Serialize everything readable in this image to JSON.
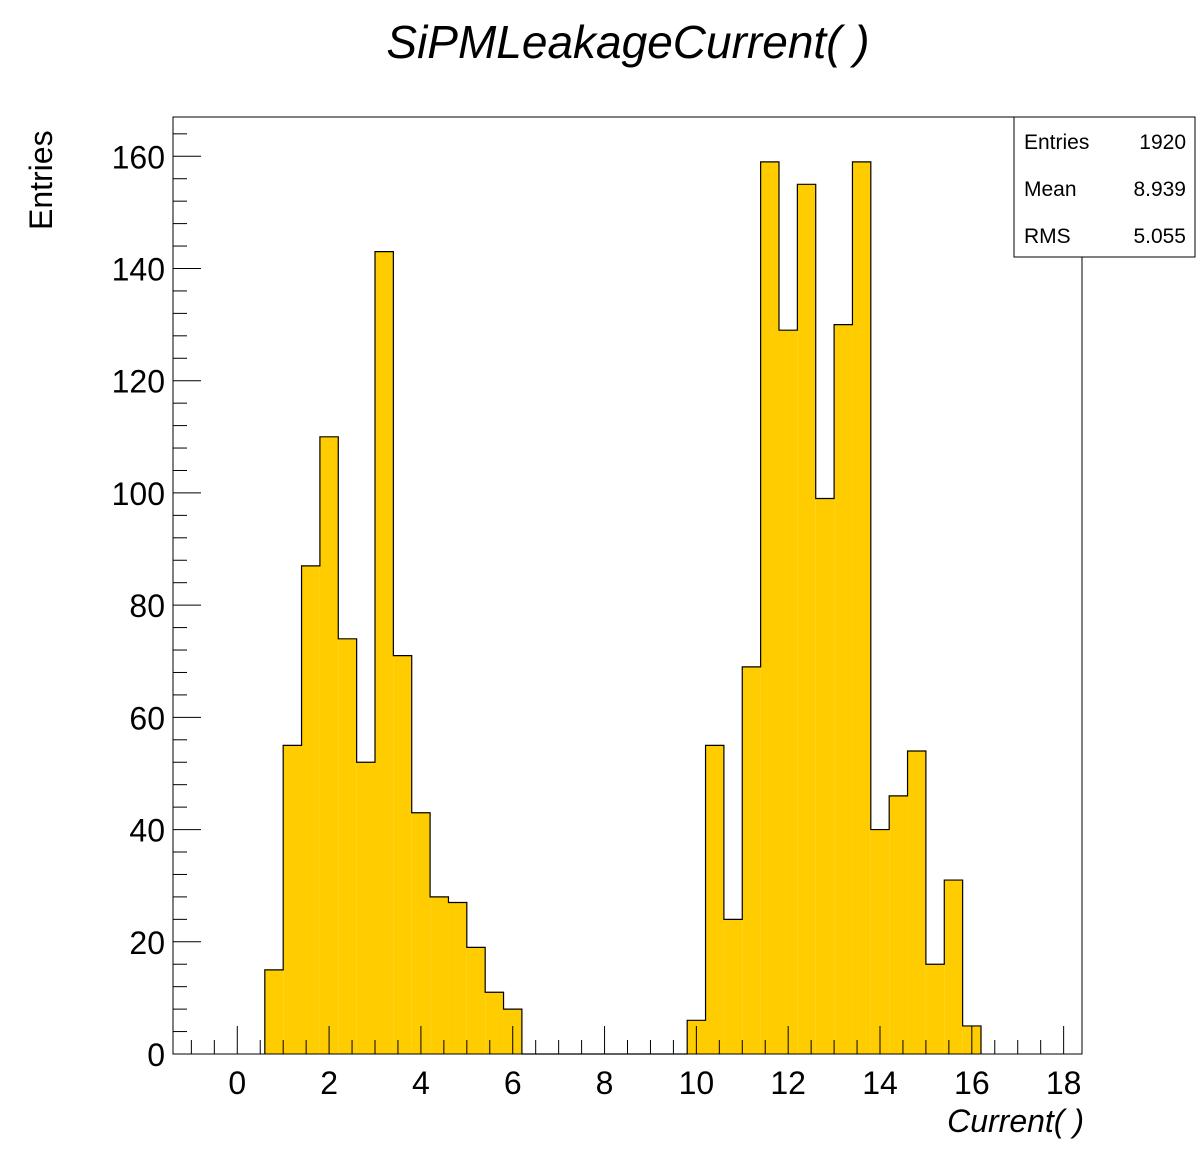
{
  "chart_data": {
    "type": "bar",
    "title": "SiPMLeakageCurrent(   )",
    "xlabel": "Current(   )",
    "ylabel": "Entries",
    "xlim": [
      -1.4,
      18.4
    ],
    "ylim": [
      0,
      167
    ],
    "bin_width": 0.4,
    "bins_start": [
      0.6,
      1.0,
      1.4,
      1.8,
      2.2,
      2.6,
      3.0,
      3.4,
      3.8,
      4.2,
      4.6,
      5.0,
      5.4,
      5.8,
      6.2,
      6.6,
      7.0,
      7.4,
      7.8,
      8.2,
      8.6,
      9.0,
      9.4,
      9.8,
      10.2,
      10.6,
      11.0,
      11.4,
      11.8,
      12.2,
      12.6,
      13.0,
      13.4,
      13.8,
      14.2,
      14.6,
      15.0,
      15.4,
      15.8
    ],
    "values": [
      15,
      55,
      87,
      110,
      74,
      52,
      143,
      71,
      43,
      28,
      27,
      19,
      11,
      8,
      0,
      0,
      0,
      0,
      0,
      0,
      0,
      0,
      0,
      6,
      55,
      24,
      69,
      159,
      129,
      155,
      99,
      130,
      159,
      40,
      46,
      54,
      16,
      31,
      5
    ],
    "x_ticks": [
      "0",
      "2",
      "4",
      "6",
      "8",
      "10",
      "12",
      "14",
      "16",
      "18"
    ],
    "y_ticks": [
      "0",
      "20",
      "40",
      "60",
      "80",
      "100",
      "120",
      "140",
      "160"
    ],
    "fill_color": "#ffcc00",
    "line_color": "#000000",
    "grid": false,
    "legend": "none",
    "stats_box": {
      "position": "top-right",
      "rows": [
        {
          "label": "Entries",
          "value": "1920"
        },
        {
          "label": "Mean",
          "value": "8.939"
        },
        {
          "label": "RMS",
          "value": "5.055"
        }
      ]
    }
  }
}
